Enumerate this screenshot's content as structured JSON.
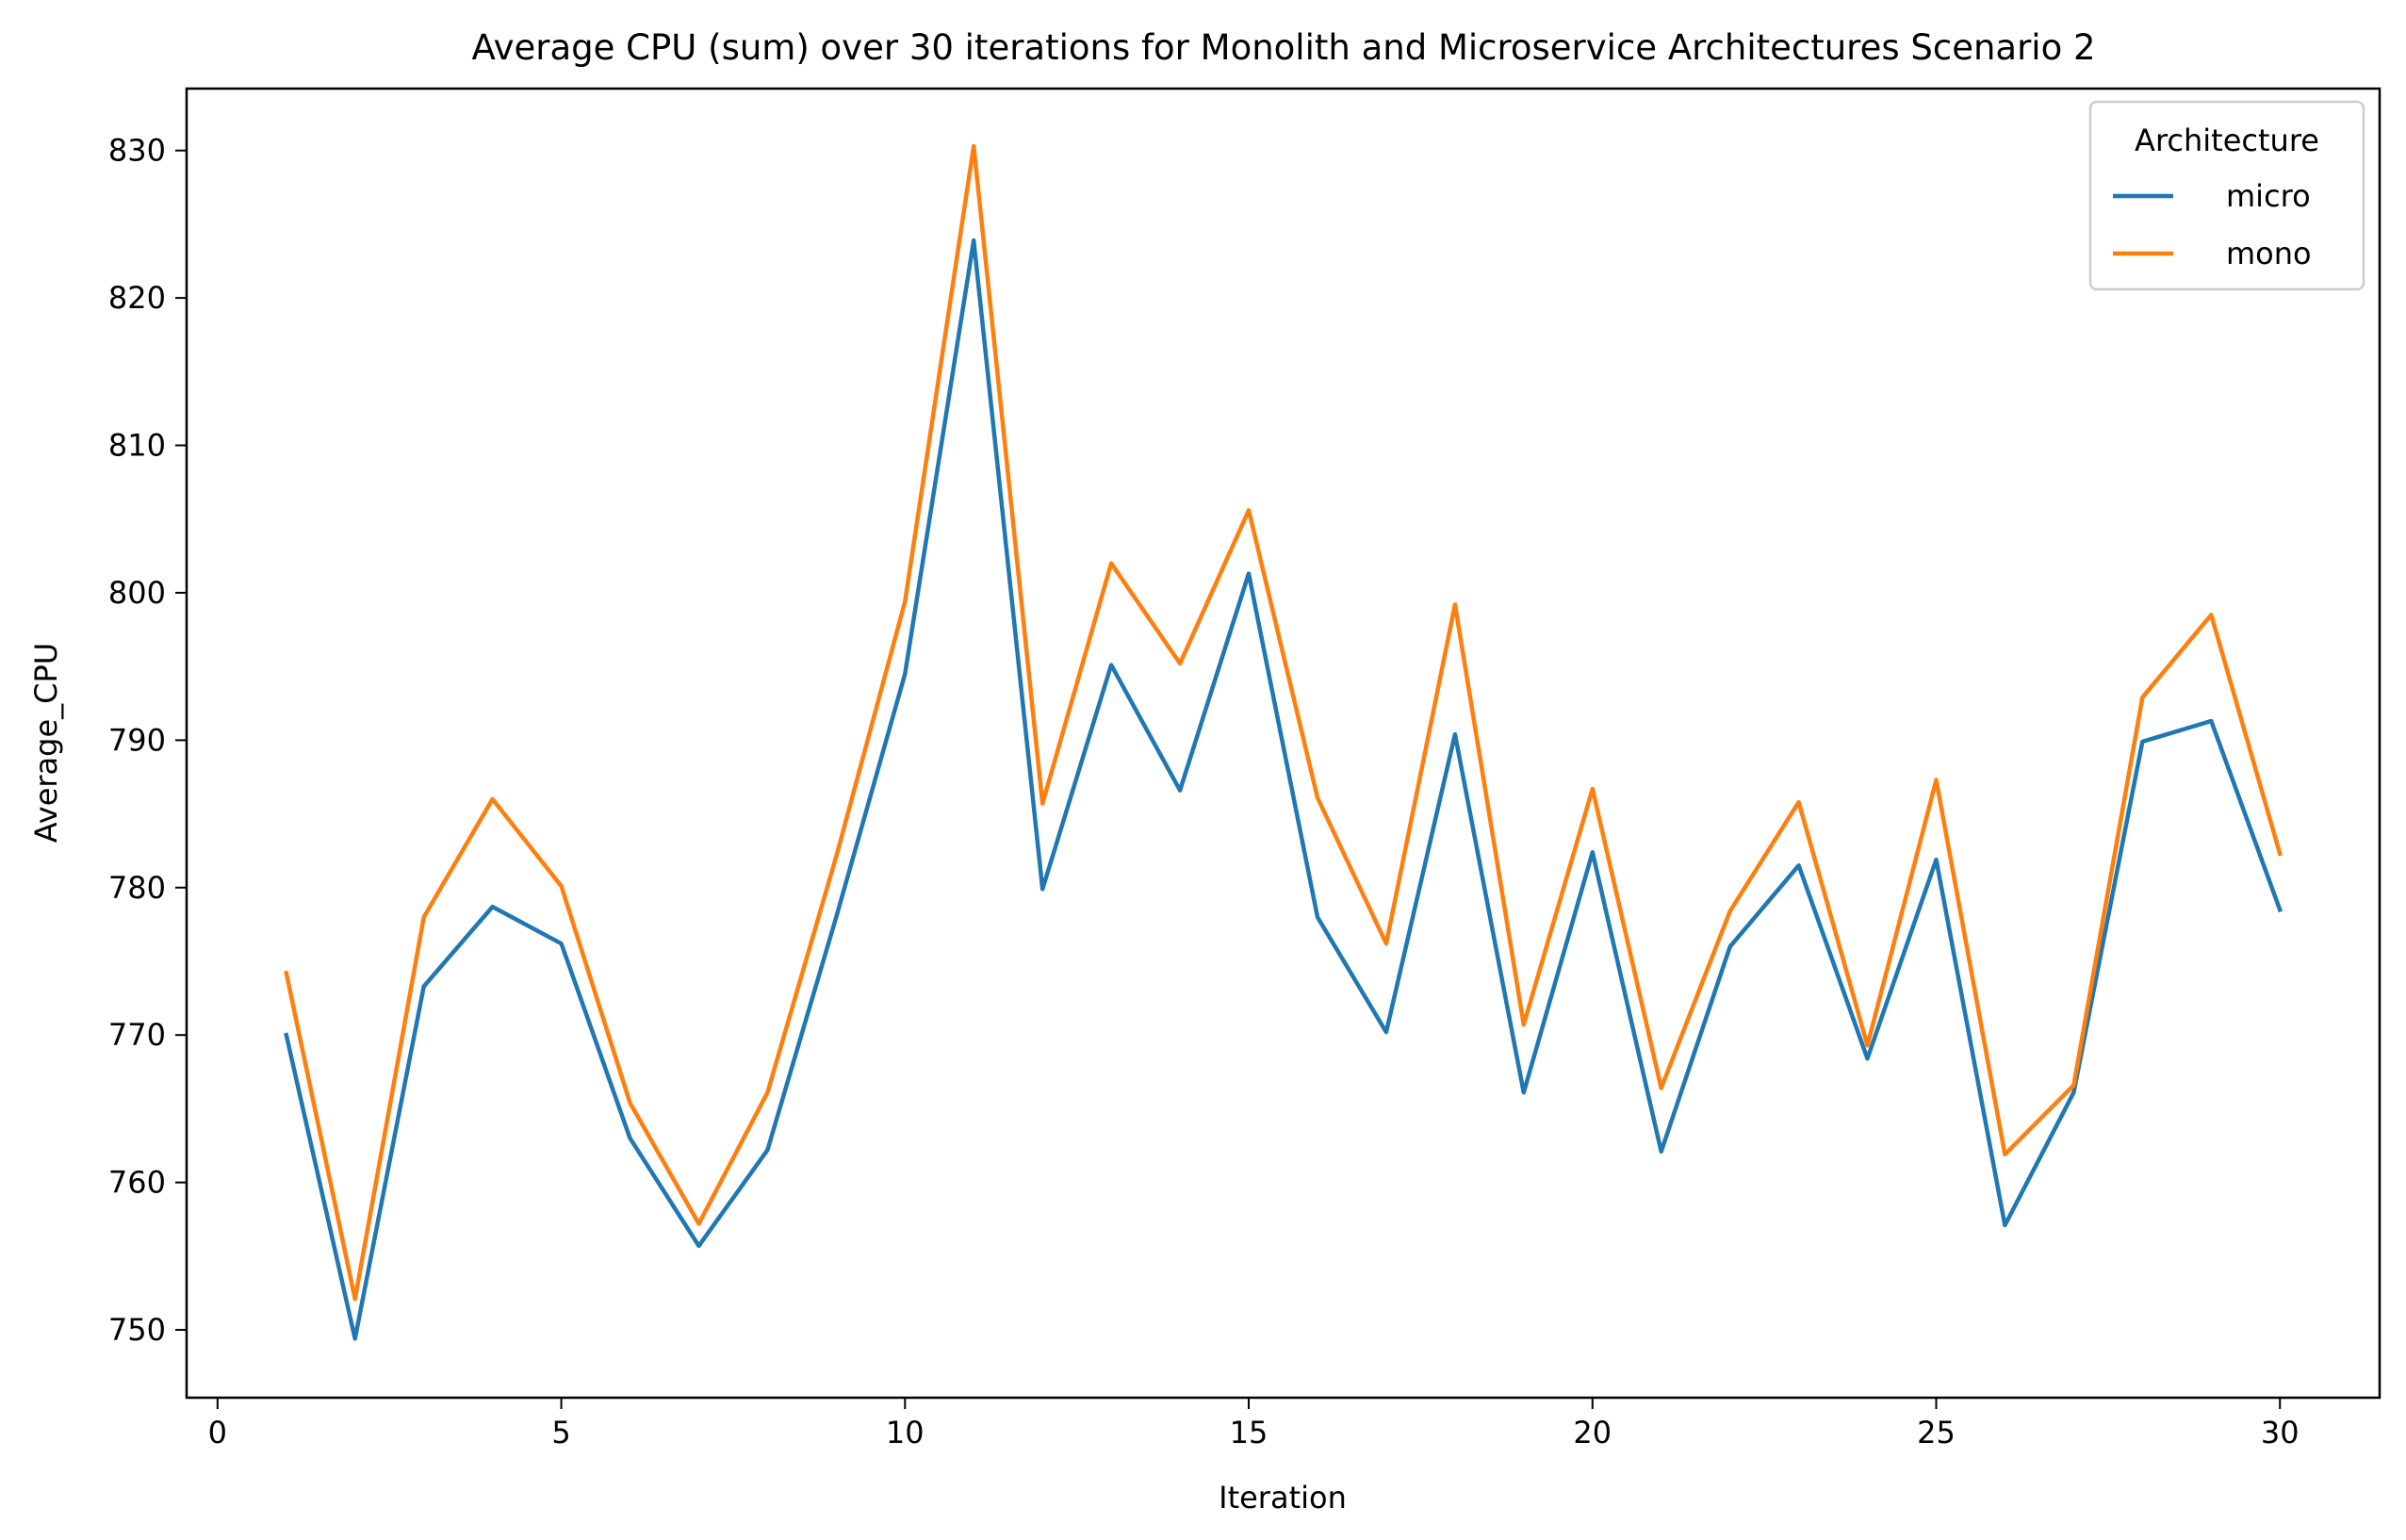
{
  "chart_data": {
    "type": "line",
    "title": "Average CPU (sum) over 30 iterations for Monolith and Microservice Architectures Scenario 2",
    "xlabel": "Iteration",
    "ylabel": "Average_CPU",
    "xlim": [
      -0.45,
      31.45
    ],
    "ylim": [
      745.4,
      834.2
    ],
    "xticks": [
      0,
      5,
      10,
      15,
      20,
      25,
      30
    ],
    "xtick_labels": [
      "0",
      "5",
      "10",
      "15",
      "20",
      "25",
      "30"
    ],
    "yticks": [
      750,
      760,
      770,
      780,
      790,
      800,
      810,
      820,
      830
    ],
    "ytick_labels": [
      "750",
      "760",
      "770",
      "780",
      "790",
      "800",
      "810",
      "820",
      "830"
    ],
    "grid": false,
    "legend": {
      "title": "Architecture",
      "placement": "top-right"
    },
    "x": [
      1,
      2,
      3,
      4,
      5,
      6,
      7,
      8,
      9,
      10,
      11,
      12,
      13,
      14,
      15,
      16,
      17,
      18,
      19,
      20,
      21,
      22,
      23,
      24,
      25,
      26,
      27,
      28,
      29,
      30
    ],
    "series": [
      {
        "name": "micro",
        "color": "#1f77b4",
        "values": [
          770.0,
          749.4,
          773.3,
          778.7,
          776.2,
          763.0,
          755.7,
          762.2,
          778.0,
          794.5,
          823.9,
          779.9,
          795.1,
          786.6,
          801.3,
          778.0,
          770.2,
          790.4,
          766.1,
          782.4,
          762.1,
          776.0,
          781.5,
          768.4,
          781.9,
          757.1,
          766.1,
          789.9,
          791.3,
          778.5
        ]
      },
      {
        "name": "mono",
        "color": "#ff7f0e",
        "values": [
          774.2,
          752.1,
          778.0,
          786.0,
          780.1,
          765.4,
          757.2,
          766.1,
          782.1,
          799.4,
          830.3,
          785.7,
          802.0,
          795.2,
          805.6,
          786.1,
          776.2,
          799.2,
          770.7,
          786.7,
          766.4,
          778.4,
          785.8,
          769.3,
          787.3,
          761.9,
          766.6,
          792.9,
          798.5,
          782.3
        ]
      }
    ]
  }
}
